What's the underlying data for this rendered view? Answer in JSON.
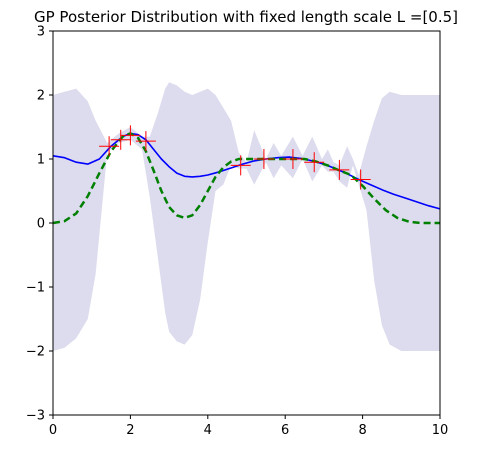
{
  "chart_data": {
    "type": "line",
    "title": "GP Posterior Distribution with fixed length scale L =[0.5]",
    "xlabel": "",
    "ylabel": "",
    "xlim": [
      0,
      10
    ],
    "ylim": [
      -3,
      3
    ],
    "xticks": [
      0,
      2,
      4,
      6,
      8,
      10
    ],
    "xtick_labels": [
      "0",
      "2",
      "4",
      "6",
      "8",
      "10"
    ],
    "yticks": [
      -3,
      -2,
      -1,
      0,
      1,
      2,
      3
    ],
    "ytick_labels": [
      "−3",
      "−2",
      "−1",
      "0",
      "1",
      "2",
      "3"
    ],
    "grid": false,
    "legend": "none",
    "colors": {
      "mean": "#0000ff",
      "true_function": "#008000",
      "confidence_band": "#dcdcee",
      "observations": "#ff0000"
    },
    "series": [
      {
        "kind": "band",
        "x": [
          0,
          0.3,
          0.6,
          0.9,
          1.1,
          1.4,
          1.7,
          2.0,
          2.3,
          2.5,
          2.7,
          2.9,
          3.0,
          3.2,
          3.4,
          3.6,
          3.8,
          4.0,
          4.2,
          4.4,
          4.6,
          4.8,
          5.0,
          5.2,
          5.5,
          5.7,
          5.9,
          6.2,
          6.45,
          6.7,
          6.95,
          7.1,
          7.25,
          7.4,
          7.6,
          7.75,
          7.9,
          8.1,
          8.3,
          8.5,
          8.7,
          9.0,
          9.3,
          9.6,
          10.0
        ],
        "upper": [
          2.0,
          2.05,
          2.1,
          1.9,
          1.6,
          1.25,
          1.4,
          1.5,
          1.35,
          1.35,
          1.7,
          2.1,
          2.2,
          2.15,
          2.05,
          2.0,
          2.05,
          2.1,
          2.0,
          1.8,
          1.6,
          1.1,
          0.95,
          1.45,
          1.0,
          1.25,
          1.05,
          1.35,
          1.05,
          1.35,
          1.0,
          1.15,
          0.95,
          0.9,
          1.2,
          1.0,
          0.75,
          1.2,
          1.6,
          1.95,
          2.05,
          2.0,
          2.0,
          2.0,
          2.0
        ],
        "lower": [
          -2.0,
          -1.95,
          -1.8,
          -1.5,
          -0.8,
          1.1,
          1.25,
          1.3,
          1.15,
          0.4,
          -0.5,
          -1.4,
          -1.7,
          -1.85,
          -1.9,
          -1.75,
          -1.2,
          -0.3,
          0.5,
          0.6,
          0.9,
          0.85,
          0.85,
          0.6,
          0.95,
          0.7,
          0.9,
          0.7,
          1.0,
          0.65,
          0.9,
          0.8,
          0.8,
          0.65,
          0.55,
          0.9,
          0.6,
          0.2,
          -0.9,
          -1.6,
          -1.9,
          -2.0,
          -2.0,
          -2.0,
          -2.0
        ]
      },
      {
        "kind": "line",
        "style": "solid",
        "x": [
          0,
          0.3,
          0.6,
          0.9,
          1.2,
          1.5,
          1.8,
          2.0,
          2.2,
          2.4,
          2.6,
          2.8,
          3.0,
          3.2,
          3.4,
          3.6,
          3.8,
          4.0,
          4.3,
          4.6,
          4.9,
          5.2,
          5.5,
          5.8,
          6.1,
          6.4,
          6.7,
          7.0,
          7.3,
          7.6,
          7.9,
          8.2,
          8.5,
          8.8,
          9.1,
          9.4,
          9.7,
          10.0
        ],
        "y": [
          1.05,
          1.02,
          0.95,
          0.92,
          1.0,
          1.2,
          1.35,
          1.4,
          1.38,
          1.3,
          1.15,
          1.0,
          0.88,
          0.78,
          0.73,
          0.72,
          0.73,
          0.75,
          0.8,
          0.86,
          0.92,
          0.97,
          1.0,
          1.02,
          1.03,
          1.01,
          0.97,
          0.92,
          0.85,
          0.77,
          0.68,
          0.6,
          0.52,
          0.45,
          0.39,
          0.33,
          0.27,
          0.22
        ]
      },
      {
        "kind": "line",
        "style": "dashed",
        "x": [
          0,
          0.3,
          0.6,
          0.9,
          1.2,
          1.5,
          1.8,
          2.0,
          2.2,
          2.4,
          2.6,
          2.8,
          3.0,
          3.2,
          3.4,
          3.6,
          3.8,
          4.0,
          4.2,
          4.4,
          4.6,
          4.8,
          5.0,
          5.3,
          5.6,
          5.9,
          6.2,
          6.5,
          6.8,
          7.1,
          7.4,
          7.7,
          8.0,
          8.3,
          8.6,
          8.9,
          9.2,
          9.5,
          9.8,
          10.0
        ],
        "y": [
          0.0,
          0.03,
          0.15,
          0.42,
          0.78,
          1.12,
          1.35,
          1.4,
          1.33,
          1.12,
          0.82,
          0.5,
          0.25,
          0.12,
          0.08,
          0.12,
          0.28,
          0.5,
          0.72,
          0.87,
          0.96,
          1.0,
          1.0,
          1.0,
          1.0,
          1.0,
          1.0,
          1.0,
          0.96,
          0.9,
          0.82,
          0.75,
          0.58,
          0.38,
          0.2,
          0.08,
          0.02,
          0.0,
          0.0,
          0.0
        ]
      },
      {
        "kind": "scatter",
        "marker": "+",
        "x": [
          1.45,
          1.75,
          2.0,
          2.4,
          4.85,
          5.45,
          6.2,
          6.75,
          7.4,
          7.95
        ],
        "y": [
          1.2,
          1.3,
          1.37,
          1.28,
          0.9,
          1.0,
          1.0,
          0.95,
          0.83,
          0.68
        ]
      }
    ]
  }
}
